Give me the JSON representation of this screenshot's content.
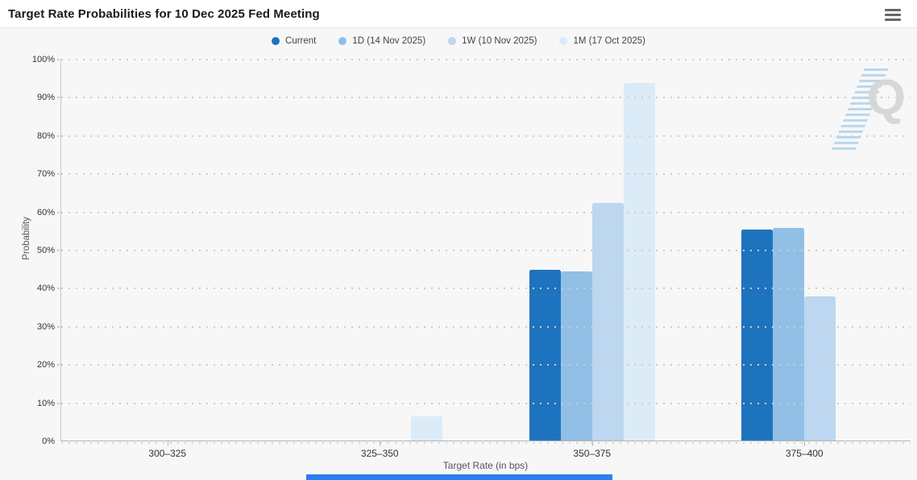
{
  "header": {
    "title": "Target Rate Probabilities for 10 Dec 2025 Fed Meeting"
  },
  "chart_data": {
    "type": "bar",
    "title": "Target Rate Probabilities for 10 Dec 2025 Fed Meeting",
    "categories": [
      "300–325",
      "325–350",
      "350–375",
      "375–400"
    ],
    "series": [
      {
        "name": "Current",
        "color": "#1e73be",
        "values": [
          0,
          0,
          44.7,
          55.3
        ]
      },
      {
        "name": "1D (14 Nov 2025)",
        "color": "#92bfe6",
        "values": [
          0,
          0,
          44.3,
          55.7
        ]
      },
      {
        "name": "1W (10 Nov 2025)",
        "color": "#bcd7ef",
        "values": [
          0,
          0,
          62.2,
          37.7
        ]
      },
      {
        "name": "1M (17 Oct 2025)",
        "color": "#dcebf8",
        "values": [
          0,
          6.3,
          93.6,
          0
        ]
      }
    ],
    "xlabel": "Target Rate (in bps)",
    "ylabel": "Probability",
    "ylim": [
      0,
      100
    ],
    "ytick_step": 10,
    "ytick_suffix": "%",
    "grid": "horizontal-dotted",
    "legend_position": "top"
  },
  "watermark": {
    "letter": "Q"
  },
  "footer": {
    "scrollbar_color": "#2c7ef0"
  }
}
